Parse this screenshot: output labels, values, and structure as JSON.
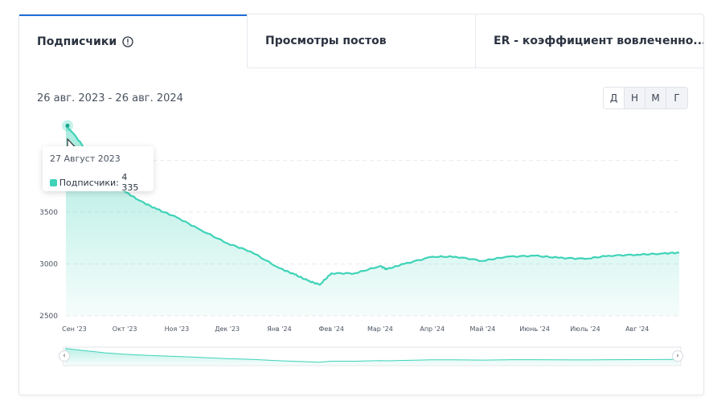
{
  "tabs": [
    {
      "label": "Подписчики",
      "active": true
    },
    {
      "label": "Просмотры постов",
      "active": false
    },
    {
      "label": "ER - коэффициент вовлеченно..."
    }
  ],
  "date_range": "26 авг. 2023 - 26 авг. 2024",
  "periods": [
    "Д",
    "Н",
    "М",
    "Г"
  ],
  "active_period": "Д",
  "tooltip": {
    "date": "27 Август 2023",
    "series_label": "Подписчики:",
    "value": "4 335"
  },
  "colors": {
    "accent": "#3fd3b8",
    "tab_active": "#1f6fd6"
  },
  "chart_data": {
    "type": "area",
    "title": "",
    "xlabel": "",
    "ylabel": "",
    "ylim": [
      2500,
      4400
    ],
    "y_ticks": [
      "2500",
      "3000",
      "3500"
    ],
    "x_ticks": [
      "Сен '23",
      "Окт '23",
      "Ноя '23",
      "Дек '23",
      "Янв '24",
      "Фев '24",
      "Мар '24",
      "Апр '24",
      "Май '24",
      "Июнь '24",
      "Июль '24",
      "Авг '24"
    ],
    "series": [
      {
        "name": "Подписчики",
        "x": [
          "2023-08-27",
          "2023-09-01",
          "2023-09-10",
          "2023-09-20",
          "2023-10-01",
          "2023-10-10",
          "2023-10-20",
          "2023-11-01",
          "2023-11-15",
          "2023-12-01",
          "2023-12-15",
          "2024-01-01",
          "2024-01-10",
          "2024-01-18",
          "2024-01-25",
          "2024-02-01",
          "2024-02-15",
          "2024-03-01",
          "2024-03-05",
          "2024-03-15",
          "2024-04-01",
          "2024-04-15",
          "2024-05-01",
          "2024-05-15",
          "2024-06-01",
          "2024-06-15",
          "2024-07-01",
          "2024-07-15",
          "2024-08-01",
          "2024-08-15",
          "2024-08-26"
        ],
        "values": [
          4335,
          4250,
          4050,
          3850,
          3700,
          3610,
          3530,
          3450,
          3330,
          3200,
          3120,
          2960,
          2900,
          2840,
          2800,
          2910,
          2910,
          2980,
          2950,
          3000,
          3070,
          3070,
          3030,
          3070,
          3080,
          3060,
          3050,
          3080,
          3090,
          3100,
          3110
        ]
      }
    ]
  }
}
